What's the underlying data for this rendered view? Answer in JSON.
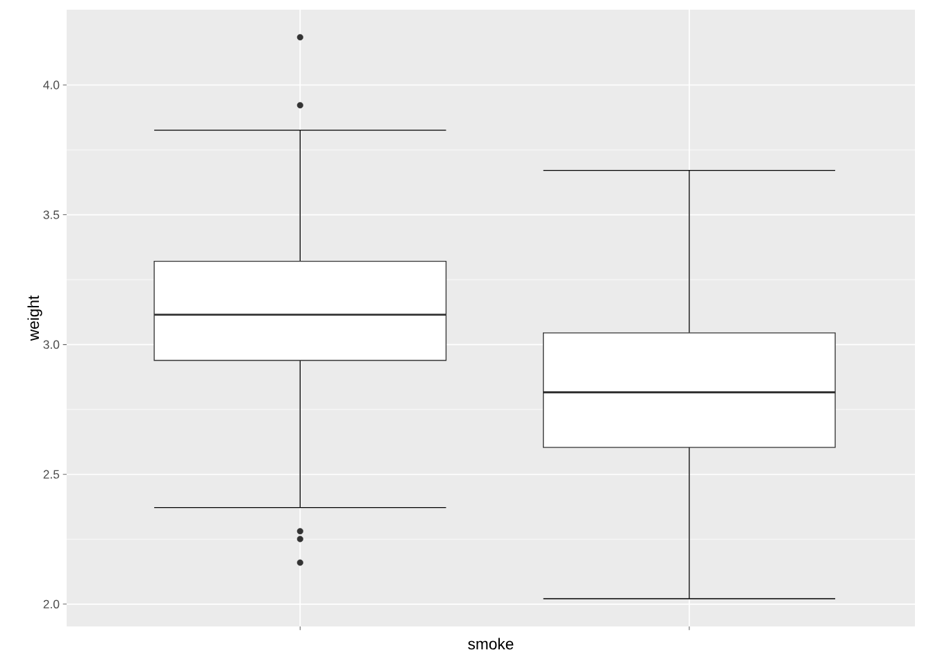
{
  "chart_data": {
    "type": "box",
    "xlabel": "smoke",
    "ylabel": "weight",
    "categories": [
      null,
      null
    ],
    "boxes": [
      {
        "low": 2.372,
        "q1": 2.939,
        "median": 3.115,
        "q3": 3.321,
        "high": 3.826,
        "outliers": [
          4.184,
          3.922,
          2.281,
          2.251,
          2.16
        ]
      },
      {
        "low": 2.021,
        "q1": 2.604,
        "median": 2.816,
        "q3": 3.045,
        "high": 3.671
      }
    ],
    "ylim": [
      1.914,
      4.29
    ],
    "yticks": [
      {
        "value": 2,
        "label": "2.0"
      },
      2.5,
      {
        "value": 3,
        "label": "3.0"
      },
      3.5,
      {
        "value": 4,
        "label": "4.0"
      }
    ],
    "grid": true,
    "tick_labels": "y"
  }
}
